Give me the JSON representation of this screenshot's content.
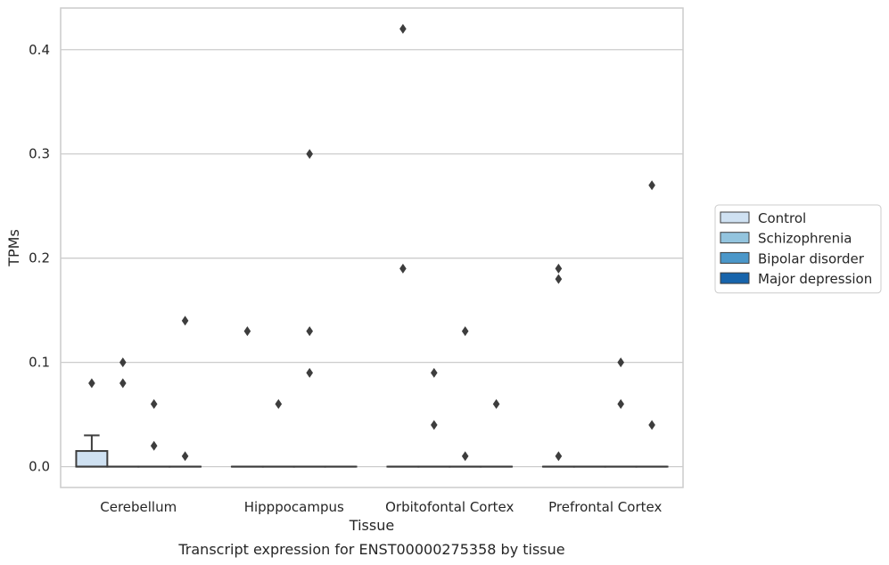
{
  "chart_data": {
    "type": "box",
    "caption": "Transcript expression for ENST00000275358 by tissue",
    "xlabel": "Tissue",
    "ylabel": "TPMs",
    "ylim": [
      -0.02,
      0.44
    ],
    "yticks": [
      0.0,
      0.1,
      0.2,
      0.3,
      0.4
    ],
    "ytick_labels": [
      "0.0",
      "0.1",
      "0.2",
      "0.3",
      "0.4"
    ],
    "grid": "horizontal",
    "legend_position": "right",
    "categories": [
      "Cerebellum",
      "Hipppocampus",
      "Orbitofontal Cortex",
      "Prefrontal Cortex"
    ],
    "series": [
      {
        "name": "Control",
        "color": "#cfe1f2",
        "boxes": [
          {
            "category": "Cerebellum",
            "q1": 0.0,
            "median": 0.0,
            "q3": 0.015,
            "whisker_low": 0.0,
            "whisker_high": 0.03,
            "outliers": [
              0.08
            ]
          },
          {
            "category": "Hipppocampus",
            "q1": 0.0,
            "median": 0.0,
            "q3": 0.0,
            "whisker_low": 0.0,
            "whisker_high": 0.0,
            "outliers": [
              0.13
            ]
          },
          {
            "category": "Orbitofontal Cortex",
            "q1": 0.0,
            "median": 0.0,
            "q3": 0.0,
            "whisker_low": 0.0,
            "whisker_high": 0.0,
            "outliers": [
              0.42,
              0.19
            ]
          },
          {
            "category": "Prefrontal Cortex",
            "q1": 0.0,
            "median": 0.0,
            "q3": 0.0,
            "whisker_low": 0.0,
            "whisker_high": 0.0,
            "outliers": [
              0.19,
              0.18,
              0.01
            ]
          }
        ]
      },
      {
        "name": "Schizophrenia",
        "color": "#93c4de",
        "boxes": [
          {
            "category": "Cerebellum",
            "q1": 0.0,
            "median": 0.0,
            "q3": 0.0,
            "whisker_low": 0.0,
            "whisker_high": 0.0,
            "outliers": [
              0.1,
              0.08
            ]
          },
          {
            "category": "Hipppocampus",
            "q1": 0.0,
            "median": 0.0,
            "q3": 0.0,
            "whisker_low": 0.0,
            "whisker_high": 0.0,
            "outliers": [
              0.06
            ]
          },
          {
            "category": "Orbitofontal Cortex",
            "q1": 0.0,
            "median": 0.0,
            "q3": 0.0,
            "whisker_low": 0.0,
            "whisker_high": 0.0,
            "outliers": [
              0.09,
              0.04
            ]
          },
          {
            "category": "Prefrontal Cortex",
            "q1": 0.0,
            "median": 0.0,
            "q3": 0.0,
            "whisker_low": 0.0,
            "whisker_high": 0.0,
            "outliers": []
          }
        ]
      },
      {
        "name": "Bipolar disorder",
        "color": "#4b97c9",
        "boxes": [
          {
            "category": "Cerebellum",
            "q1": 0.0,
            "median": 0.0,
            "q3": 0.0,
            "whisker_low": 0.0,
            "whisker_high": 0.0,
            "outliers": [
              0.06,
              0.02
            ]
          },
          {
            "category": "Hipppocampus",
            "q1": 0.0,
            "median": 0.0,
            "q3": 0.0,
            "whisker_low": 0.0,
            "whisker_high": 0.0,
            "outliers": [
              0.3,
              0.13,
              0.09
            ]
          },
          {
            "category": "Orbitofontal Cortex",
            "q1": 0.0,
            "median": 0.0,
            "q3": 0.0,
            "whisker_low": 0.0,
            "whisker_high": 0.0,
            "outliers": [
              0.13,
              0.01
            ]
          },
          {
            "category": "Prefrontal Cortex",
            "q1": 0.0,
            "median": 0.0,
            "q3": 0.0,
            "whisker_low": 0.0,
            "whisker_high": 0.0,
            "outliers": [
              0.1,
              0.06
            ]
          }
        ]
      },
      {
        "name": "Major depression",
        "color": "#1764ab",
        "boxes": [
          {
            "category": "Cerebellum",
            "q1": 0.0,
            "median": 0.0,
            "q3": 0.0,
            "whisker_low": 0.0,
            "whisker_high": 0.0,
            "outliers": [
              0.14,
              0.01
            ]
          },
          {
            "category": "Hipppocampus",
            "q1": 0.0,
            "median": 0.0,
            "q3": 0.0,
            "whisker_low": 0.0,
            "whisker_high": 0.0,
            "outliers": []
          },
          {
            "category": "Orbitofontal Cortex",
            "q1": 0.0,
            "median": 0.0,
            "q3": 0.0,
            "whisker_low": 0.0,
            "whisker_high": 0.0,
            "outliers": [
              0.06
            ]
          },
          {
            "category": "Prefrontal Cortex",
            "q1": 0.0,
            "median": 0.0,
            "q3": 0.0,
            "whisker_low": 0.0,
            "whisker_high": 0.0,
            "outliers": [
              0.27,
              0.04
            ]
          }
        ]
      }
    ],
    "colors": {
      "grid": "#cccccc",
      "frame": "#cccccc",
      "box_edge": "#3d3d3d",
      "outlier": "#3d3d3d"
    }
  }
}
